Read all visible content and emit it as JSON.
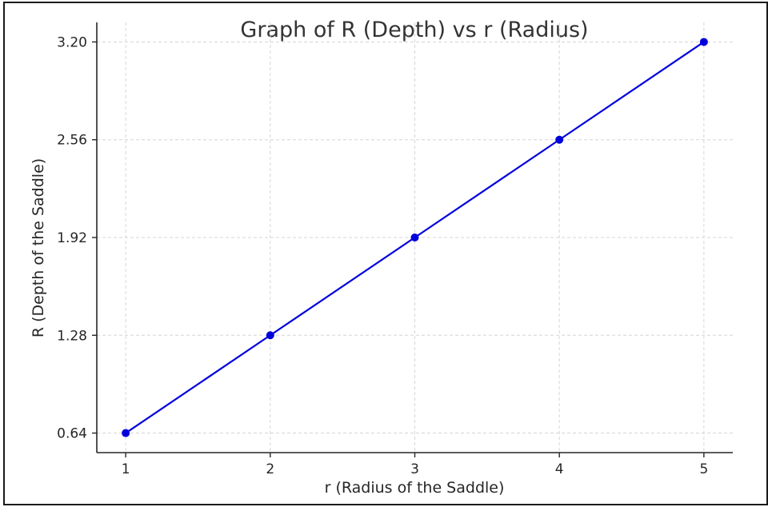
{
  "chart_data": {
    "type": "line",
    "title": "Graph of R (Depth) vs r (Radius)",
    "xlabel": "r (Radius of the Saddle)",
    "ylabel": "R (Depth of the Saddle)",
    "x": [
      1,
      2,
      3,
      4,
      5
    ],
    "series": [
      {
        "values": [
          0.64,
          1.28,
          1.92,
          2.56,
          3.2
        ]
      }
    ],
    "xticks": [
      "1",
      "2",
      "3",
      "4",
      "5"
    ],
    "yticks": [
      "0.64",
      "1.28",
      "1.92",
      "2.56",
      "3.20"
    ],
    "xlim": [
      0.8,
      5.2
    ],
    "ylim": [
      0.512,
      3.328
    ],
    "grid": true,
    "legend": "none",
    "color": "#0000dd"
  }
}
